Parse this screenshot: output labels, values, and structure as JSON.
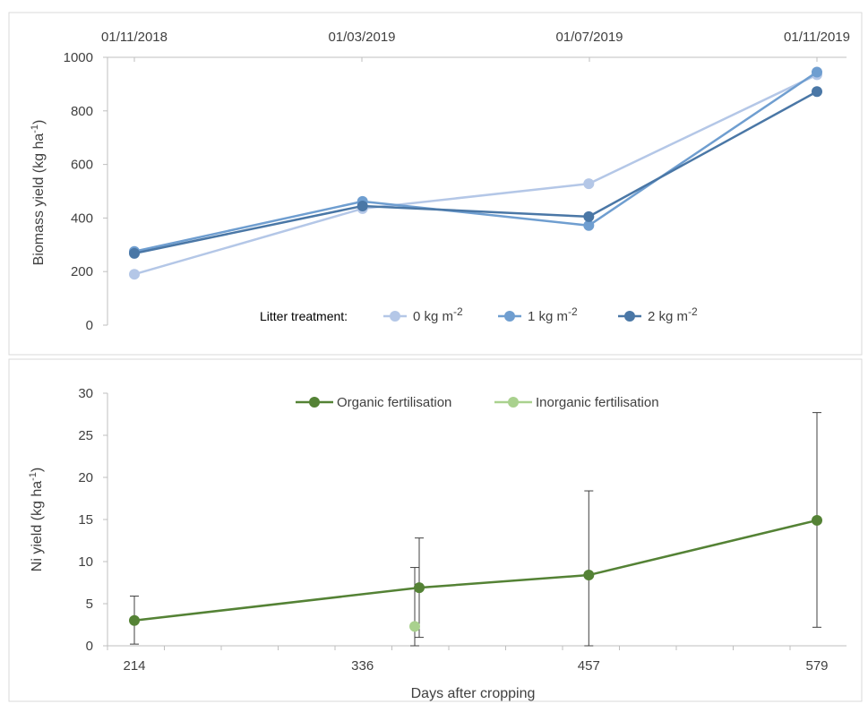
{
  "chart_data": [
    {
      "type": "line",
      "ylabel_main": "Biomass yield (kg ha",
      "ylabel_sup": "-1",
      "ylabel_close": ")",
      "ylim": [
        0,
        1000
      ],
      "yticks": [
        "0",
        "200",
        "400",
        "600",
        "800",
        "1000"
      ],
      "top_axis_ticks": [
        "01/11/2018",
        "01/03/2019",
        "01/07/2019",
        "01/11/2019"
      ],
      "legend_title": "Litter treatment:",
      "legend_placement": "bottom",
      "series": [
        {
          "name": "0 kg m",
          "name_sup": "-2",
          "color": "#b4c7e7",
          "x": [
            214,
            336,
            457,
            579
          ],
          "values": [
            190,
            435,
            528,
            935
          ]
        },
        {
          "name": "1 kg m",
          "name_sup": "-2",
          "color": "#6f9ed0",
          "x": [
            214,
            336,
            457,
            579
          ],
          "values": [
            275,
            462,
            372,
            945
          ]
        },
        {
          "name": "2 kg m",
          "name_sup": "-2",
          "color": "#4a77a6",
          "x": [
            214,
            336,
            457,
            579
          ],
          "values": [
            268,
            445,
            405,
            872
          ]
        }
      ]
    },
    {
      "type": "line",
      "ylabel_main": "Ni yield (kg ha",
      "ylabel_sup": "-1",
      "ylabel_close": ")",
      "xlabel": "Days after cropping",
      "ylim": [
        0,
        30
      ],
      "yticks": [
        "0",
        "5",
        "10",
        "15",
        "20",
        "25",
        "30"
      ],
      "xticks": [
        "214",
        "336",
        "457",
        "579"
      ],
      "legend_placement": "top",
      "series": [
        {
          "name": "Organic fertilisation",
          "color": "#548235",
          "x": [
            214,
            336,
            457,
            579
          ],
          "values": [
            3.0,
            6.9,
            8.4,
            14.9
          ],
          "error_low": [
            0.2,
            1.0,
            0.0,
            2.2
          ],
          "error_high": [
            5.9,
            12.8,
            18.4,
            27.7
          ]
        },
        {
          "name": "Inorganic fertilisation",
          "color": "#a9d18e",
          "x": [
            336
          ],
          "values": [
            2.3
          ],
          "error_low": [
            0.0
          ],
          "error_high": [
            9.3
          ]
        }
      ]
    }
  ]
}
